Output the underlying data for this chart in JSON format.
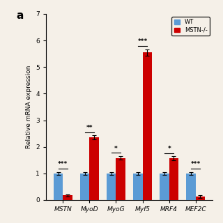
{
  "categories": [
    "MSTN",
    "MyoD",
    "MyoG",
    "Myf5",
    "MRF4",
    "MEF2C"
  ],
  "wt_values": [
    1.0,
    1.0,
    1.0,
    1.0,
    1.0,
    1.0
  ],
  "mstn_values": [
    0.18,
    2.35,
    1.58,
    5.55,
    1.57,
    0.13
  ],
  "wt_errors": [
    0.05,
    0.06,
    0.05,
    0.05,
    0.05,
    0.06
  ],
  "mstn_errors": [
    0.04,
    0.08,
    0.07,
    0.12,
    0.07,
    0.04
  ],
  "wt_color": "#5b9bd5",
  "mstn_color": "#cc0000",
  "significance": [
    "***",
    "**",
    "*",
    "***",
    "*",
    "***"
  ],
  "ylabel": "Relative mRNA expression",
  "ylim": [
    0,
    7
  ],
  "yticks": [
    0,
    1,
    2,
    3,
    4,
    5,
    6,
    7
  ],
  "panel_label": "a",
  "legend_wt": "WT",
  "legend_mstn": "MSTN-/-",
  "background_color": "#f5f0e8",
  "bar_width": 0.35
}
